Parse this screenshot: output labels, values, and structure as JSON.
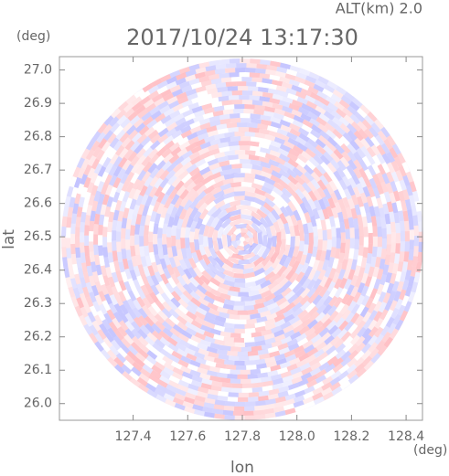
{
  "chart_data": {
    "type": "radar-image",
    "title": "2017/10/24 13:17:30",
    "altitude_label": "ALT(km) 2.0",
    "xlabel": "lon",
    "ylabel": "lat",
    "x_unit": "(deg)",
    "y_unit": "(deg)",
    "xlim": [
      127.13,
      128.46
    ],
    "ylim": [
      25.95,
      27.04
    ],
    "xticks": [
      127.4,
      127.6,
      127.8,
      {
        "value": 128,
        "label": "128.0"
      },
      128.2,
      128.4
    ],
    "yticks": [
      {
        "value": 26,
        "label": "26.0"
      },
      26.1,
      26.2,
      26.3,
      26.4,
      26.5,
      26.6,
      26.7,
      26.8,
      26.9,
      {
        "value": 27,
        "label": "27.0"
      }
    ]
  }
}
